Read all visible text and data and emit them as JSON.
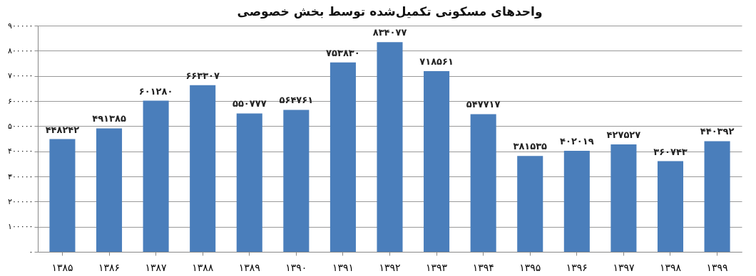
{
  "chart_data": {
    "type": "bar",
    "title": "واحدهای مسکونی تکمیل‌شده توسط بخش خصوصی",
    "categories": [
      "۱۳۸۵",
      "۱۳۸۶",
      "۱۳۸۷",
      "۱۳۸۸",
      "۱۳۸۹",
      "۱۳۹۰",
      "۱۳۹۱",
      "۱۳۹۲",
      "۱۳۹۳",
      "۱۳۹۴",
      "۱۳۹۵",
      "۱۳۹۶",
      "۱۳۹۷",
      "۱۳۹۸",
      "۱۳۹۹"
    ],
    "values": [
      448242,
      491385,
      601280,
      663307,
      550777,
      564761,
      753830,
      834077,
      718561,
      547717,
      381535,
      402019,
      427527,
      360743,
      440392
    ],
    "value_labels": [
      "۴۴۸۲۴۲",
      "۴۹۱۳۸۵",
      "۶۰۱۲۸۰",
      "۶۶۳۳۰۷",
      "۵۵۰۷۷۷",
      "۵۶۴۷۶۱",
      "۷۵۳۸۳۰",
      "۸۳۴۰۷۷",
      "۷۱۸۵۶۱",
      "۵۴۷۷۱۷",
      "۳۸۱۵۳۵",
      "۴۰۲۰۱۹",
      "۴۲۷۵۲۷",
      "۳۶۰۷۴۳",
      "۴۴۰۳۹۲"
    ],
    "color": "#4a7ebb",
    "ylim": [
      0,
      900000
    ],
    "yticks": [
      {
        "value": 0,
        "label": "۰"
      },
      {
        "value": 100000,
        "label": "۱۰۰۰۰۰"
      },
      {
        "value": 200000,
        "label": "۲۰۰۰۰۰"
      },
      {
        "value": 300000,
        "label": "۳۰۰۰۰۰"
      },
      {
        "value": 400000,
        "label": "۴۰۰۰۰۰"
      },
      {
        "value": 500000,
        "label": "۵۰۰۰۰۰"
      },
      {
        "value": 600000,
        "label": "۶۰۰۰۰۰"
      },
      {
        "value": 700000,
        "label": "۷۰۰۰۰۰"
      },
      {
        "value": 800000,
        "label": "۸۰۰۰۰۰"
      },
      {
        "value": 900000,
        "label": "۹۰۰۰۰۰"
      }
    ],
    "grid": "y"
  }
}
